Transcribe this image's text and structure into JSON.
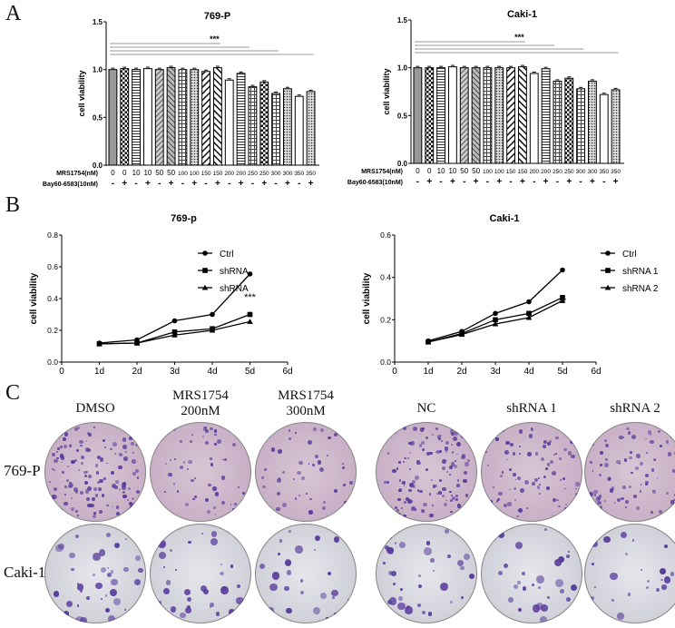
{
  "panels": {
    "a": "A",
    "b": "B",
    "c": "C"
  },
  "chart_data": [
    {
      "type": "bar",
      "title": "769-P",
      "ylabel": "cell viability",
      "ylim": [
        0,
        1.5
      ],
      "yticks": [
        "0.0",
        "0.5",
        "1.0",
        "1.5"
      ],
      "row_labels": [
        "MRS1754(nM)",
        "Bay60-6583(10nM)"
      ],
      "categories": [
        "0",
        "0",
        "10",
        "10",
        "50",
        "50",
        "100",
        "100",
        "150",
        "150",
        "200",
        "200",
        "250",
        "250",
        "300",
        "300",
        "350",
        "350"
      ],
      "bay": [
        "-",
        "+",
        "-",
        "+",
        "-",
        "+",
        "-",
        "+",
        "-",
        "+",
        "-",
        "+",
        "-",
        "+",
        "-",
        "+",
        "-",
        "+"
      ],
      "values": [
        1.0,
        1.01,
        1.0,
        1.01,
        1.0,
        1.02,
        1.0,
        1.0,
        0.98,
        1.02,
        0.89,
        0.96,
        0.82,
        0.87,
        0.75,
        0.8,
        0.72,
        0.77
      ],
      "annotation": "***",
      "grid": false
    },
    {
      "type": "bar",
      "title": "Caki-1",
      "ylabel": "cell viability",
      "ylim": [
        0,
        1.5
      ],
      "yticks": [
        "0.0",
        "0.5",
        "1.0",
        "1.5"
      ],
      "row_labels": [
        "MRS1754(nM)",
        "Bay60-6583(10nM)"
      ],
      "categories": [
        "0",
        "0",
        "10",
        "10",
        "50",
        "50",
        "100",
        "100",
        "150",
        "150",
        "200",
        "200",
        "250",
        "250",
        "300",
        "300",
        "350",
        "350"
      ],
      "bay": [
        "-",
        "+",
        "-",
        "+",
        "-",
        "+",
        "-",
        "+",
        "-",
        "+",
        "-",
        "+",
        "-",
        "+",
        "-",
        "+",
        "-",
        "+"
      ],
      "values": [
        1.0,
        1.0,
        1.0,
        1.01,
        1.0,
        1.0,
        1.0,
        1.0,
        1.0,
        1.01,
        0.94,
        0.99,
        0.86,
        0.89,
        0.78,
        0.86,
        0.72,
        0.77
      ],
      "annotation": "***",
      "grid": false
    },
    {
      "type": "line",
      "title": "769-p",
      "ylabel": "cell viability",
      "ylim": [
        0,
        0.8
      ],
      "yticks": [
        "0.0",
        "0.2",
        "0.4",
        "0.6",
        "0.8"
      ],
      "xticks": [
        "0",
        "1d",
        "2d",
        "3d",
        "4d",
        "5d",
        "6d"
      ],
      "x": [
        1,
        2,
        3,
        4,
        5
      ],
      "legend": "right",
      "series": [
        {
          "name": "Ctrl",
          "marker": "circle",
          "values": [
            0.12,
            0.14,
            0.26,
            0.3,
            0.555
          ]
        },
        {
          "name": "shRNA",
          "marker": "square",
          "values": [
            0.115,
            0.12,
            0.19,
            0.21,
            0.3
          ]
        },
        {
          "name": "shRNA",
          "marker": "triangle",
          "values": [
            0.115,
            0.12,
            0.17,
            0.2,
            0.255
          ]
        }
      ],
      "annotation": "***"
    },
    {
      "type": "line",
      "title": "Caki-1",
      "ylabel": "cell viability",
      "ylim": [
        0,
        0.6
      ],
      "yticks": [
        "0.0",
        "0.2",
        "0.4",
        "0.6"
      ],
      "xticks": [
        "0",
        "1d",
        "2d",
        "3d",
        "4d",
        "5d",
        "6d"
      ],
      "x": [
        1,
        2,
        3,
        4,
        5
      ],
      "legend": "right",
      "series": [
        {
          "name": "Ctrl",
          "marker": "circle",
          "values": [
            0.1,
            0.145,
            0.23,
            0.285,
            0.435
          ]
        },
        {
          "name": "shRNA 1",
          "marker": "square",
          "values": [
            0.095,
            0.135,
            0.2,
            0.23,
            0.305
          ]
        },
        {
          "name": "shRNA 2",
          "marker": "triangle",
          "values": [
            0.095,
            0.13,
            0.18,
            0.21,
            0.29
          ]
        }
      ],
      "annotation": "**"
    }
  ],
  "colony": {
    "columns": [
      [
        "DMSO",
        ""
      ],
      [
        "MRS1754",
        "200nM"
      ],
      [
        "MRS1754",
        "300nM"
      ],
      [
        "NC",
        ""
      ],
      [
        "shRNA 1",
        ""
      ],
      [
        "shRNA 2",
        ""
      ]
    ],
    "rows": [
      "769-P",
      "Caki-1"
    ],
    "stain_color": "#5a3d9c"
  }
}
